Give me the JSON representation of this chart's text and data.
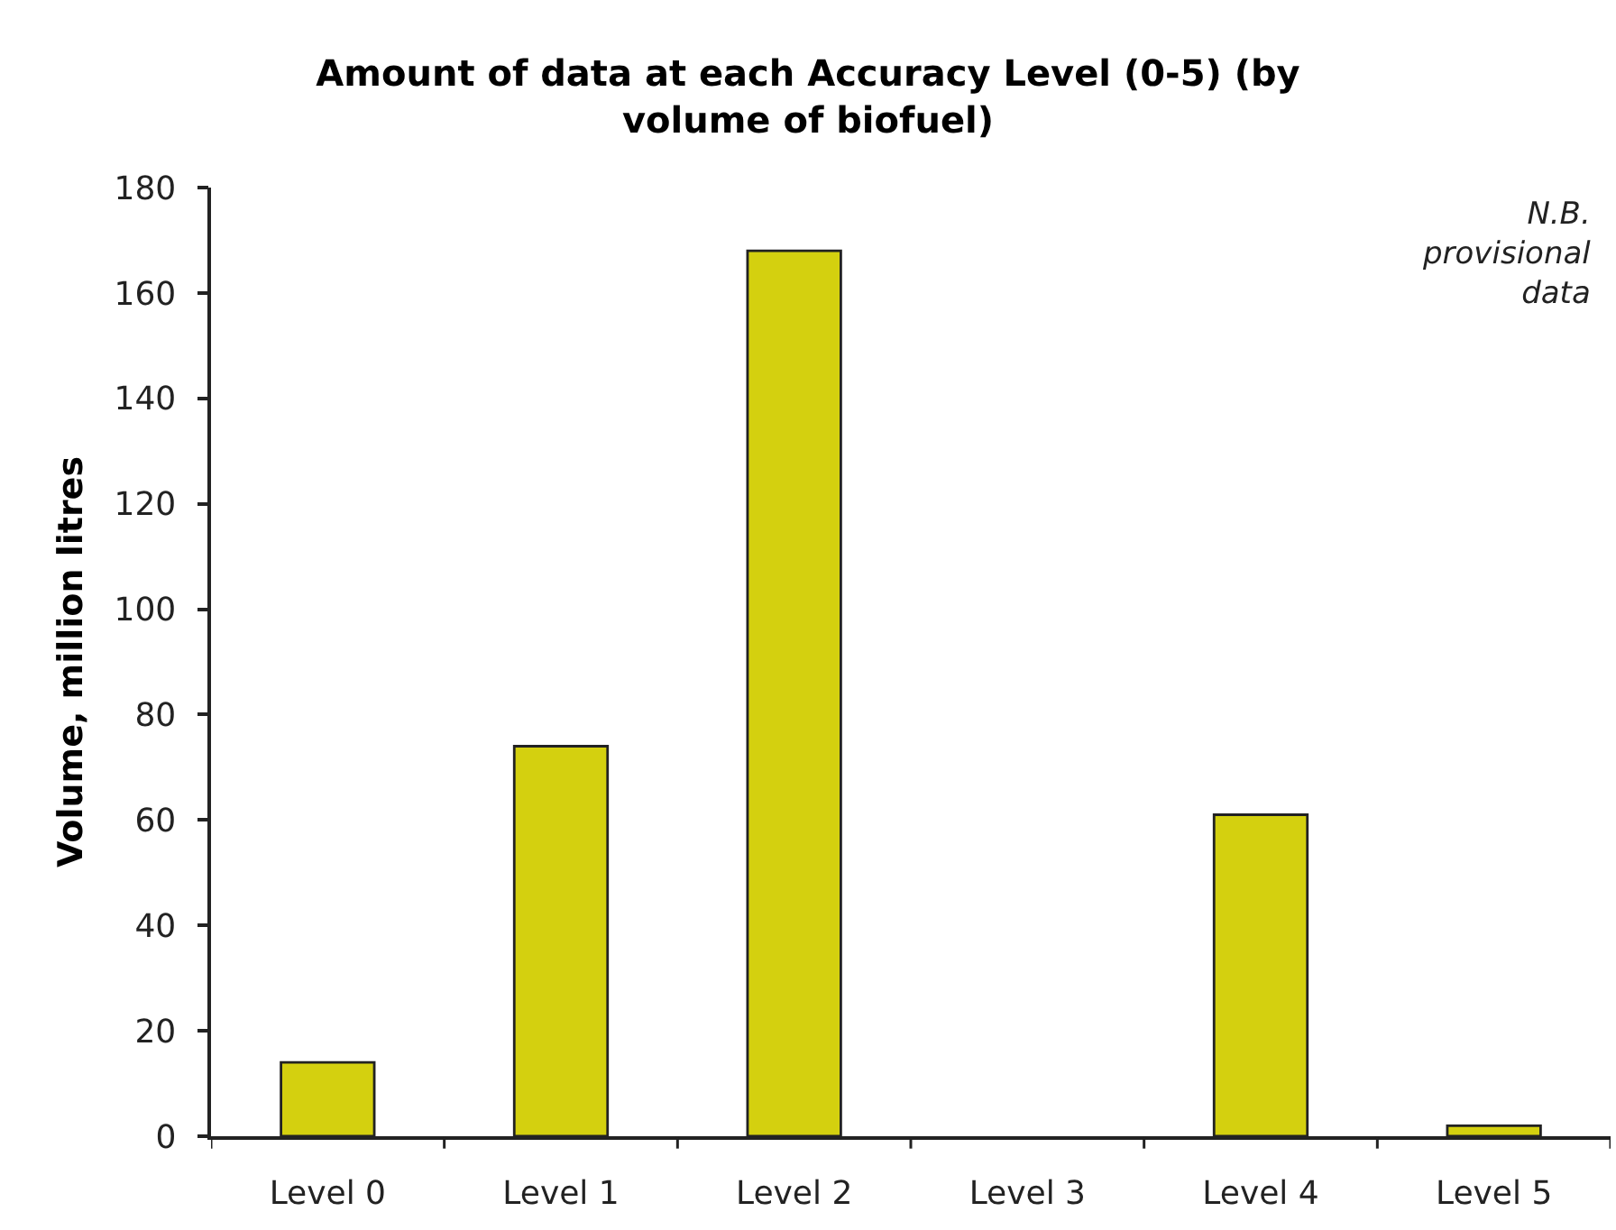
{
  "chart_data": {
    "type": "bar",
    "title": "Amount of data at each Accuracy Level (0-5) (by volume of biofuel)",
    "ylabel": "Volume, million litres",
    "categories": [
      "Level 0",
      "Level 1",
      "Level 2",
      "Level 3",
      "Level 4",
      "Level 5"
    ],
    "values": [
      14,
      74,
      168,
      null,
      61,
      2
    ],
    "color": "#d4d00f",
    "ylim": [
      0,
      180
    ],
    "yticks": [
      0,
      20,
      40,
      60,
      80,
      100,
      120,
      140,
      160,
      180
    ],
    "annotations": [
      "N.B. provisional data"
    ]
  }
}
